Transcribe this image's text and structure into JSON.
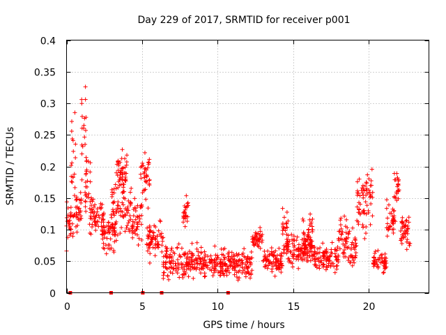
{
  "chart_data": {
    "type": "scatter",
    "title": "Day 229 of 2017, SRMTID for receiver p001",
    "xlabel": "GPS time / hours",
    "ylabel": "SRMTID / TECUs",
    "xlim": [
      0,
      24
    ],
    "ylim": [
      0,
      0.4
    ],
    "x_ticks": [
      0,
      5,
      10,
      15,
      20
    ],
    "x_tick_labels": [
      "0",
      "5",
      "10",
      "15",
      "20"
    ],
    "y_ticks": [
      0,
      0.05,
      0.1,
      0.15,
      0.2,
      0.25,
      0.3,
      0.35,
      0.4
    ],
    "y_tick_labels": [
      "0",
      "0.05",
      "0.1",
      "0.15",
      "0.2",
      "0.25",
      "0.3",
      "0.35",
      "0.4"
    ],
    "grid": true,
    "marker": "plus",
    "color": "#ff0000",
    "zero_markers_x": [
      0.25,
      2.95,
      5.05,
      6.3,
      10.7
    ],
    "segments": [
      {
        "x_start": 0.0,
        "x_end": 0.5,
        "y_center": 0.11,
        "y_spread": 0.05
      },
      {
        "x_start": 0.3,
        "x_end": 0.6,
        "y_center": 0.21,
        "y_spread": 0.12
      },
      {
        "x_start": 0.5,
        "x_end": 1.0,
        "y_center": 0.13,
        "y_spread": 0.05
      },
      {
        "x_start": 1.0,
        "x_end": 1.3,
        "y_center": 0.26,
        "y_spread": 0.11
      },
      {
        "x_start": 1.2,
        "x_end": 1.6,
        "y_center": 0.17,
        "y_spread": 0.09
      },
      {
        "x_start": 1.5,
        "x_end": 2.5,
        "y_center": 0.12,
        "y_spread": 0.04
      },
      {
        "x_start": 2.3,
        "x_end": 3.3,
        "y_center": 0.095,
        "y_spread": 0.045
      },
      {
        "x_start": 3.0,
        "x_end": 4.3,
        "y_center": 0.135,
        "y_spread": 0.065
      },
      {
        "x_start": 3.3,
        "x_end": 4.0,
        "y_center": 0.19,
        "y_spread": 0.045
      },
      {
        "x_start": 4.3,
        "x_end": 5.0,
        "y_center": 0.11,
        "y_spread": 0.055
      },
      {
        "x_start": 4.9,
        "x_end": 5.5,
        "y_center": 0.18,
        "y_spread": 0.055
      },
      {
        "x_start": 5.3,
        "x_end": 6.4,
        "y_center": 0.085,
        "y_spread": 0.04
      },
      {
        "x_start": 6.4,
        "x_end": 9.0,
        "y_center": 0.05,
        "y_spread": 0.035
      },
      {
        "x_start": 7.7,
        "x_end": 8.1,
        "y_center": 0.12,
        "y_spread": 0.04
      },
      {
        "x_start": 9.0,
        "x_end": 12.3,
        "y_center": 0.045,
        "y_spread": 0.032
      },
      {
        "x_start": 12.3,
        "x_end": 13.0,
        "y_center": 0.085,
        "y_spread": 0.025
      },
      {
        "x_start": 13.0,
        "x_end": 14.3,
        "y_center": 0.05,
        "y_spread": 0.03
      },
      {
        "x_start": 14.3,
        "x_end": 14.8,
        "y_center": 0.1,
        "y_spread": 0.05
      },
      {
        "x_start": 14.5,
        "x_end": 16.3,
        "y_center": 0.07,
        "y_spread": 0.035
      },
      {
        "x_start": 15.6,
        "x_end": 16.3,
        "y_center": 0.09,
        "y_spread": 0.04
      },
      {
        "x_start": 16.3,
        "x_end": 18.0,
        "y_center": 0.055,
        "y_spread": 0.03
      },
      {
        "x_start": 18.0,
        "x_end": 18.6,
        "y_center": 0.09,
        "y_spread": 0.065
      },
      {
        "x_start": 18.6,
        "x_end": 19.2,
        "y_center": 0.07,
        "y_spread": 0.04
      },
      {
        "x_start": 19.2,
        "x_end": 19.8,
        "y_center": 0.14,
        "y_spread": 0.065
      },
      {
        "x_start": 19.8,
        "x_end": 20.3,
        "y_center": 0.155,
        "y_spread": 0.075
      },
      {
        "x_start": 20.3,
        "x_end": 21.2,
        "y_center": 0.05,
        "y_spread": 0.025
      },
      {
        "x_start": 21.2,
        "x_end": 21.8,
        "y_center": 0.12,
        "y_spread": 0.04
      },
      {
        "x_start": 21.7,
        "x_end": 22.1,
        "y_center": 0.17,
        "y_spread": 0.045
      },
      {
        "x_start": 22.1,
        "x_end": 22.8,
        "y_center": 0.1,
        "y_spread": 0.04
      }
    ]
  }
}
